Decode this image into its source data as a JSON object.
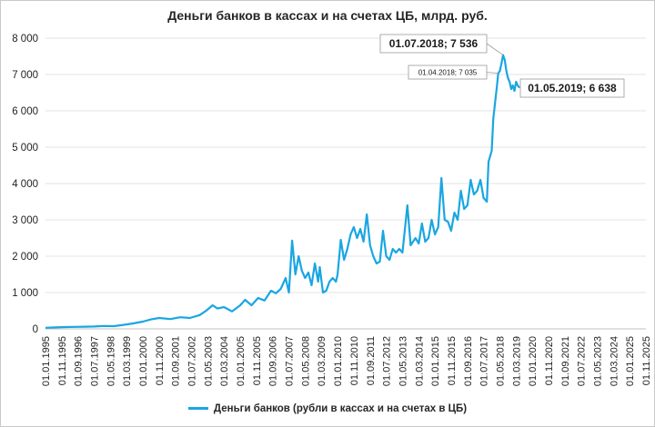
{
  "chart_data": {
    "type": "line",
    "title": "Деньги банков в кассах и на счетах ЦБ, млрд. руб.",
    "legend": "Деньги банков (рубли в кассах и на счетах в ЦБ)",
    "legend_position": "bottom",
    "series_color": "#1aa6e2",
    "grid": true,
    "ylim": [
      0,
      8000
    ],
    "y_ticks": [
      "0",
      "1 000",
      "2 000",
      "3 000",
      "4 000",
      "5 000",
      "6 000",
      "7 000",
      "8 000"
    ],
    "x_ticks": [
      "01.01.1995",
      "01.11.1995",
      "01.09.1996",
      "01.07.1997",
      "01.05.1998",
      "01.03.1999",
      "01.01.2000",
      "01.11.2000",
      "01.09.2001",
      "01.07.2002",
      "01.05.2003",
      "01.03.2004",
      "01.01.2005",
      "01.11.2005",
      "01.09.2006",
      "01.07.2007",
      "01.05.2008",
      "01.03.2009",
      "01.01.2010",
      "01.11.2010",
      "01.09.2011",
      "01.07.2012",
      "01.05.2013",
      "01.03.2014",
      "01.01.2015",
      "01.11.2015",
      "01.09.2016",
      "01.07.2017",
      "01.05.2018",
      "01.03.2019",
      "01.01.2020",
      "01.11.2020",
      "01.09.2021",
      "01.07.2022",
      "01.05.2023",
      "01.03.2024",
      "01.01.2025",
      "01.11.2025"
    ],
    "series": [
      {
        "name": "Деньги банков (рубли в кассах и на счетах в ЦБ)",
        "points": [
          [
            "1995-01",
            30
          ],
          [
            "1995-07",
            40
          ],
          [
            "1996-01",
            50
          ],
          [
            "1996-07",
            55
          ],
          [
            "1997-01",
            60
          ],
          [
            "1997-07",
            65
          ],
          [
            "1998-01",
            80
          ],
          [
            "1998-07",
            75
          ],
          [
            "1999-01",
            110
          ],
          [
            "1999-07",
            150
          ],
          [
            "2000-01",
            200
          ],
          [
            "2000-06",
            260
          ],
          [
            "2000-11",
            300
          ],
          [
            "2001-06",
            270
          ],
          [
            "2001-12",
            320
          ],
          [
            "2002-06",
            300
          ],
          [
            "2002-12",
            380
          ],
          [
            "2003-04",
            500
          ],
          [
            "2003-08",
            650
          ],
          [
            "2003-11",
            560
          ],
          [
            "2004-03",
            600
          ],
          [
            "2004-08",
            480
          ],
          [
            "2005-01",
            650
          ],
          [
            "2005-04",
            800
          ],
          [
            "2005-08",
            650
          ],
          [
            "2005-12",
            850
          ],
          [
            "2006-04",
            780
          ],
          [
            "2006-08",
            1050
          ],
          [
            "2006-11",
            980
          ],
          [
            "2007-02",
            1100
          ],
          [
            "2007-05",
            1400
          ],
          [
            "2007-07",
            1000
          ],
          [
            "2007-09",
            2430
          ],
          [
            "2007-11",
            1500
          ],
          [
            "2008-01",
            2000
          ],
          [
            "2008-03",
            1600
          ],
          [
            "2008-05",
            1400
          ],
          [
            "2008-07",
            1550
          ],
          [
            "2008-09",
            1200
          ],
          [
            "2008-11",
            1800
          ],
          [
            "2009-01",
            1300
          ],
          [
            "2009-02",
            1700
          ],
          [
            "2009-04",
            1000
          ],
          [
            "2009-06",
            1050
          ],
          [
            "2009-08",
            1300
          ],
          [
            "2009-10",
            1400
          ],
          [
            "2009-12",
            1300
          ],
          [
            "2010-01",
            1500
          ],
          [
            "2010-03",
            2450
          ],
          [
            "2010-05",
            1900
          ],
          [
            "2010-07",
            2200
          ],
          [
            "2010-09",
            2600
          ],
          [
            "2010-11",
            2800
          ],
          [
            "2011-01",
            2500
          ],
          [
            "2011-03",
            2750
          ],
          [
            "2011-05",
            2400
          ],
          [
            "2011-07",
            3150
          ],
          [
            "2011-09",
            2300
          ],
          [
            "2011-11",
            2000
          ],
          [
            "2012-01",
            1800
          ],
          [
            "2012-03",
            1850
          ],
          [
            "2012-05",
            2700
          ],
          [
            "2012-07",
            2000
          ],
          [
            "2012-09",
            1900
          ],
          [
            "2012-11",
            2200
          ],
          [
            "2013-01",
            2100
          ],
          [
            "2013-03",
            2200
          ],
          [
            "2013-05",
            2100
          ],
          [
            "2013-08",
            3400
          ],
          [
            "2013-10",
            2300
          ],
          [
            "2014-01",
            2500
          ],
          [
            "2014-03",
            2350
          ],
          [
            "2014-05",
            2900
          ],
          [
            "2014-07",
            2400
          ],
          [
            "2014-09",
            2500
          ],
          [
            "2014-11",
            3000
          ],
          [
            "2015-01",
            2600
          ],
          [
            "2015-03",
            2800
          ],
          [
            "2015-05",
            4150
          ],
          [
            "2015-07",
            3000
          ],
          [
            "2015-09",
            2950
          ],
          [
            "2015-11",
            2700
          ],
          [
            "2016-01",
            3200
          ],
          [
            "2016-03",
            3000
          ],
          [
            "2016-05",
            3800
          ],
          [
            "2016-07",
            3300
          ],
          [
            "2016-09",
            3400
          ],
          [
            "2016-11",
            4100
          ],
          [
            "2017-01",
            3700
          ],
          [
            "2017-03",
            3800
          ],
          [
            "2017-05",
            4100
          ],
          [
            "2017-07",
            3600
          ],
          [
            "2017-09",
            3500
          ],
          [
            "2017-10",
            4600
          ],
          [
            "2017-12",
            4900
          ],
          [
            "2018-01",
            5800
          ],
          [
            "2018-02",
            6200
          ],
          [
            "2018-03",
            6600
          ],
          [
            "2018-04",
            7035
          ],
          [
            "2018-05",
            7100
          ],
          [
            "2018-06",
            7300
          ],
          [
            "2018-07",
            7536
          ],
          [
            "2018-08",
            7400
          ],
          [
            "2018-09",
            7100
          ],
          [
            "2018-10",
            6900
          ],
          [
            "2018-11",
            6800
          ],
          [
            "2018-12",
            6600
          ],
          [
            "2019-01",
            6700
          ],
          [
            "2019-02",
            6550
          ],
          [
            "2019-03",
            6800
          ],
          [
            "2019-04",
            6700
          ],
          [
            "2019-05",
            6638
          ]
        ]
      }
    ],
    "annotations": [
      {
        "label": "01.07.2018; 7 536",
        "date": "2018-07",
        "value": 7536
      },
      {
        "label": "01.04.2018; 7 035",
        "date": "2018-04",
        "value": 7035
      },
      {
        "label": "01.05.2019; 6 638",
        "date": "2019-05",
        "value": 6638
      }
    ]
  }
}
